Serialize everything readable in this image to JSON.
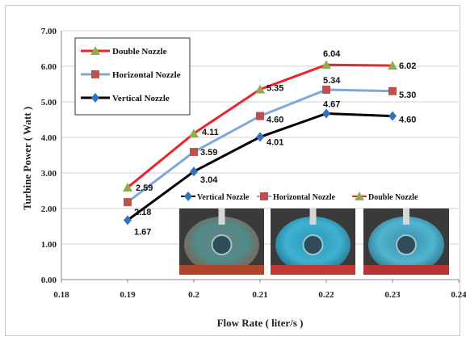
{
  "chart_data": {
    "type": "line",
    "title": "",
    "xlabel": "Flow Rate ( liter/s )",
    "ylabel": "Turbine  Power  ( Watt )",
    "xlim": [
      0.18,
      0.24
    ],
    "ylim": [
      0,
      7
    ],
    "x_ticks": [
      "0.18",
      "0.19",
      "0.2",
      "0.21",
      "0.22",
      "0.23",
      "0.24"
    ],
    "y_ticks": [
      "0.00",
      "1.00",
      "2.00",
      "3.00",
      "4.00",
      "5.00",
      "6.00",
      "7.00"
    ],
    "grid": "horizontal",
    "x": [
      0.19,
      0.2,
      0.21,
      0.22,
      0.23
    ],
    "series": [
      {
        "name": "Double  Nozzle",
        "marker": "triangle",
        "color": "#e8262d",
        "marker_color": "#8fae4a",
        "values": [
          2.59,
          4.11,
          5.35,
          6.04,
          6.02
        ],
        "labels": [
          "2.59",
          "4.11",
          "5.35",
          "6.04",
          "6.02"
        ]
      },
      {
        "name": "Horizontal Nozzle",
        "marker": "square",
        "color": "#7fa7d9",
        "marker_color": "#c0504d",
        "values": [
          2.18,
          3.59,
          4.6,
          5.34,
          5.3
        ],
        "labels": [
          "2.18",
          "3.59",
          "4.60",
          "5.34",
          "5.30"
        ]
      },
      {
        "name": "Vertical Nozzle",
        "marker": "diamond",
        "color": "#000000",
        "marker_color": "#2f74c0",
        "values": [
          1.67,
          3.04,
          4.01,
          4.67,
          4.6
        ],
        "labels": [
          "1.67",
          "3.04",
          "4.01",
          "4.67",
          "4.60"
        ]
      }
    ],
    "legend": {
      "placement": "top-left",
      "entries": [
        "Double  Nozzle",
        "Horizontal Nozzle",
        "Vertical Nozzle"
      ]
    },
    "inner_legend": {
      "placement": "lower-middle",
      "entries": [
        "Vertical Nozzle",
        "Horizontal Nozzle",
        "Double  Nozzle"
      ]
    },
    "photos": [
      "vertical-nozzle-photo",
      "horizontal-nozzle-photo",
      "double-nozzle-photo"
    ]
  }
}
